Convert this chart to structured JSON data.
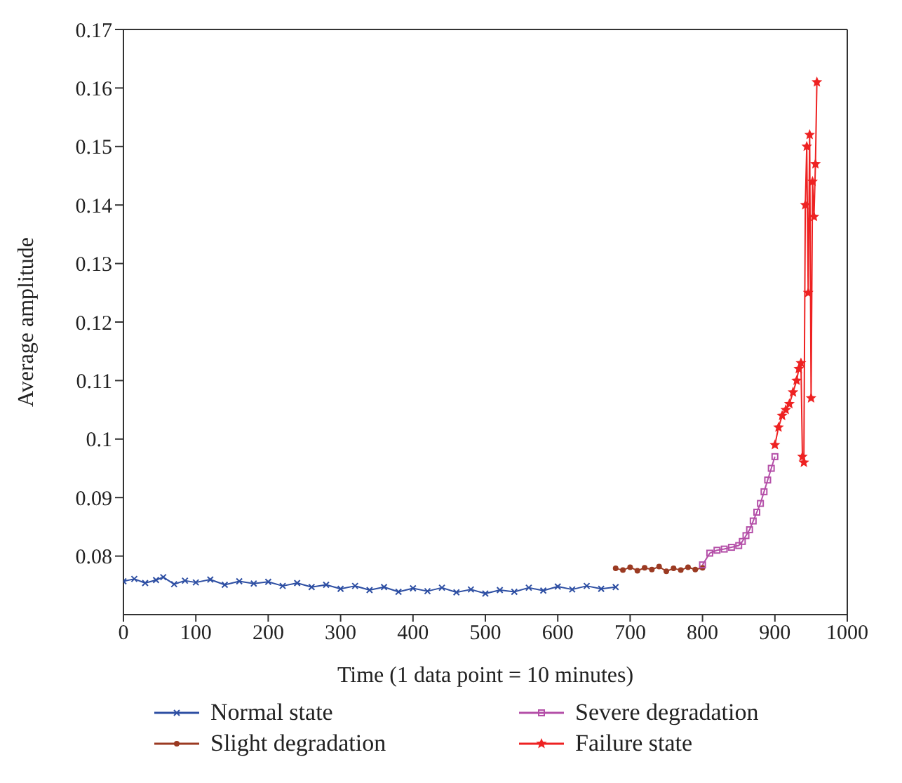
{
  "chart_data": {
    "type": "line",
    "xlabel": "Time (1 data point = 10 minutes)",
    "ylabel": "Average amplitude",
    "xlim": [
      0,
      1000
    ],
    "ylim": [
      0.07,
      0.17
    ],
    "xticks": [
      0,
      100,
      200,
      300,
      400,
      500,
      600,
      700,
      800,
      900,
      1000
    ],
    "yticks": [
      0.08,
      0.09,
      0.1,
      0.11,
      0.12,
      0.13,
      0.14,
      0.15,
      0.16,
      0.17
    ],
    "legend": "bottom",
    "line_style": "solid",
    "series": [
      {
        "name": "Normal state",
        "color": "#2e4fa3",
        "marker": "cross",
        "x": [
          0,
          15,
          30,
          45,
          55,
          70,
          85,
          100,
          120,
          140,
          160,
          180,
          200,
          220,
          240,
          260,
          280,
          300,
          320,
          340,
          360,
          380,
          400,
          420,
          440,
          460,
          480,
          500,
          520,
          540,
          560,
          580,
          600,
          620,
          640,
          660,
          680
        ],
        "values": [
          0.0757,
          0.0761,
          0.0754,
          0.0759,
          0.0764,
          0.0752,
          0.0758,
          0.0755,
          0.076,
          0.0751,
          0.0757,
          0.0753,
          0.0756,
          0.0749,
          0.0754,
          0.0747,
          0.0751,
          0.0744,
          0.0749,
          0.0742,
          0.0747,
          0.0739,
          0.0745,
          0.074,
          0.0746,
          0.0738,
          0.0743,
          0.0736,
          0.0742,
          0.0739,
          0.0746,
          0.0741,
          0.0748,
          0.0743,
          0.0749,
          0.0744,
          0.0747
        ]
      },
      {
        "name": "Slight degradation",
        "color": "#9b3a22",
        "marker": "circle",
        "x": [
          680,
          690,
          700,
          710,
          720,
          730,
          740,
          750,
          760,
          770,
          780,
          790,
          800
        ],
        "values": [
          0.0779,
          0.0776,
          0.0781,
          0.0775,
          0.078,
          0.0777,
          0.0782,
          0.0774,
          0.0779,
          0.0776,
          0.0781,
          0.0777,
          0.078
        ]
      },
      {
        "name": "Severe degradation",
        "color": "#b44fa8",
        "marker": "square",
        "x": [
          800,
          810,
          820,
          830,
          840,
          850,
          855,
          860,
          865,
          870,
          875,
          880,
          885,
          890,
          895,
          900
        ],
        "values": [
          0.0785,
          0.0805,
          0.081,
          0.0812,
          0.0815,
          0.0818,
          0.0825,
          0.0835,
          0.0845,
          0.086,
          0.0875,
          0.089,
          0.091,
          0.093,
          0.095,
          0.097
        ]
      },
      {
        "name": "Failure state",
        "color": "#ee2222",
        "marker": "star",
        "x": [
          900,
          905,
          910,
          915,
          920,
          925,
          930,
          933,
          936,
          938,
          940,
          942,
          944,
          946,
          948,
          950,
          952,
          954,
          956,
          958
        ],
        "values": [
          0.099,
          0.102,
          0.104,
          0.105,
          0.106,
          0.108,
          0.11,
          0.112,
          0.113,
          0.097,
          0.096,
          0.14,
          0.15,
          0.125,
          0.152,
          0.107,
          0.144,
          0.138,
          0.147,
          0.161
        ]
      }
    ]
  }
}
